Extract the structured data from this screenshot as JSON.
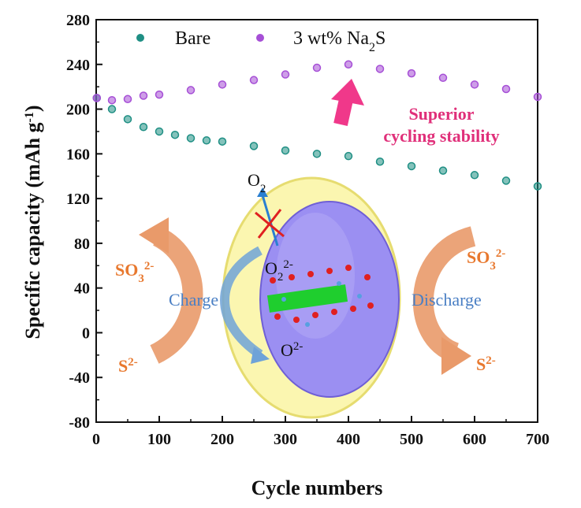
{
  "chart_data": {
    "type": "scatter",
    "xlabel": "Cycle numbers",
    "ylabel": "Specific capacity (mAh g",
    "ylabel_sup": "-1",
    "ylabel_close": ")",
    "xlim": [
      0,
      700
    ],
    "ylim": [
      -80,
      280
    ],
    "xticks": [
      0,
      100,
      200,
      300,
      400,
      500,
      600,
      700
    ],
    "yticks": [
      -80,
      -40,
      0,
      40,
      80,
      120,
      160,
      200,
      240,
      280
    ],
    "legend_position": "top-left",
    "series": [
      {
        "name": "Bare",
        "name_sub": "",
        "color": "#1f8f84",
        "x": [
          1,
          25,
          50,
          75,
          100,
          125,
          150,
          175,
          200,
          250,
          300,
          350,
          400,
          450,
          500,
          550,
          600,
          650,
          700
        ],
        "y": [
          210,
          200,
          191,
          184,
          180,
          177,
          174,
          172,
          171,
          167,
          163,
          160,
          158,
          153,
          149,
          145,
          141,
          136,
          131
        ]
      },
      {
        "name": "3 wt% Na",
        "name_sub": "2",
        "name_tail": "S",
        "color": "#a64fd6",
        "x": [
          1,
          25,
          50,
          75,
          100,
          150,
          200,
          250,
          300,
          350,
          400,
          450,
          500,
          550,
          600,
          650,
          700
        ],
        "y": [
          210,
          208,
          209,
          212,
          213,
          217,
          222,
          226,
          231,
          237,
          240,
          236,
          232,
          228,
          222,
          218,
          211
        ]
      }
    ],
    "annotations": {
      "superior_line1": "Superior",
      "superior_line2": "cycling stability",
      "o2": "O",
      "o2_sub": "2",
      "o2_2minus": "O",
      "o2_2minus_sub": "2",
      "o2_2minus_sup": "2-",
      "o_2minus": "O",
      "o_2minus_sup": "2-",
      "charge": "Charge",
      "discharge": "Discharge",
      "so3_left": "SO",
      "so3_left_sub": "3",
      "so3_left_sup": "2-",
      "s_left": "S",
      "s_left_sup": "2-",
      "so3_right": "SO",
      "so3_right_sub": "3",
      "so3_right_sup": "2-",
      "s_right": "S",
      "s_right_sup": "2-"
    }
  }
}
